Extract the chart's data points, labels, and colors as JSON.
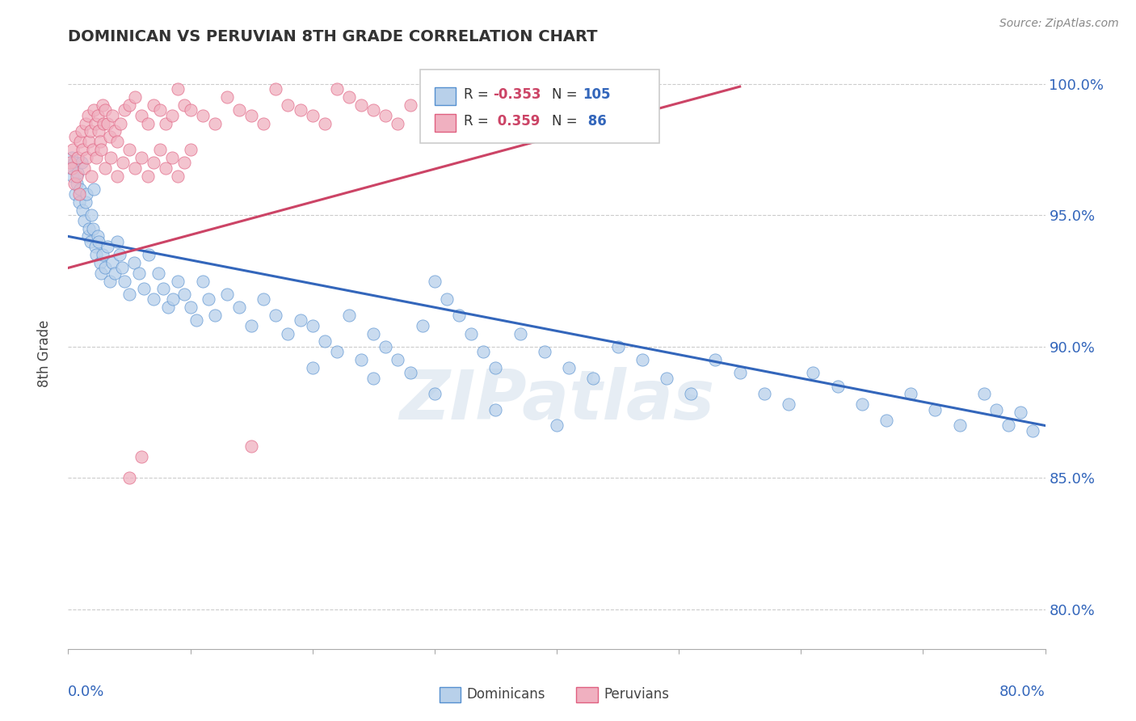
{
  "title": "DOMINICAN VS PERUVIAN 8TH GRADE CORRELATION CHART",
  "source_text": "Source: ZipAtlas.com",
  "ylabel": "8th Grade",
  "ytick_labels": [
    "80.0%",
    "85.0%",
    "90.0%",
    "95.0%",
    "100.0%"
  ],
  "ytick_values": [
    0.8,
    0.85,
    0.9,
    0.95,
    1.0
  ],
  "xlim": [
    0.0,
    0.8
  ],
  "ylim": [
    0.785,
    1.01
  ],
  "R_blue": -0.353,
  "N_blue": 105,
  "R_pink": 0.359,
  "N_pink": 86,
  "blue_color": "#b8d0ea",
  "pink_color": "#f0b0c0",
  "blue_edge_color": "#5590d0",
  "pink_edge_color": "#e06080",
  "blue_line_color": "#3366bb",
  "pink_line_color": "#cc4466",
  "legend_label_blue": "Dominicans",
  "legend_label_pink": "Peruvians",
  "watermark": "ZIPatlas",
  "blue_trend_x": [
    0.0,
    0.8
  ],
  "blue_trend_y": [
    0.942,
    0.87
  ],
  "pink_trend_x": [
    0.0,
    0.55
  ],
  "pink_trend_y": [
    0.93,
    0.999
  ],
  "blue_scatter_x": [
    0.002,
    0.003,
    0.004,
    0.005,
    0.006,
    0.007,
    0.008,
    0.009,
    0.01,
    0.011,
    0.012,
    0.013,
    0.014,
    0.015,
    0.016,
    0.017,
    0.018,
    0.019,
    0.02,
    0.021,
    0.022,
    0.023,
    0.024,
    0.025,
    0.026,
    0.027,
    0.028,
    0.03,
    0.032,
    0.034,
    0.036,
    0.038,
    0.04,
    0.042,
    0.044,
    0.046,
    0.05,
    0.054,
    0.058,
    0.062,
    0.066,
    0.07,
    0.074,
    0.078,
    0.082,
    0.086,
    0.09,
    0.095,
    0.1,
    0.105,
    0.11,
    0.115,
    0.12,
    0.13,
    0.14,
    0.15,
    0.16,
    0.17,
    0.18,
    0.19,
    0.2,
    0.21,
    0.22,
    0.23,
    0.24,
    0.25,
    0.26,
    0.27,
    0.28,
    0.29,
    0.3,
    0.31,
    0.32,
    0.33,
    0.34,
    0.35,
    0.37,
    0.39,
    0.41,
    0.43,
    0.45,
    0.47,
    0.49,
    0.51,
    0.53,
    0.55,
    0.57,
    0.59,
    0.61,
    0.63,
    0.65,
    0.67,
    0.69,
    0.71,
    0.73,
    0.75,
    0.76,
    0.77,
    0.78,
    0.79,
    0.2,
    0.25,
    0.3,
    0.35,
    0.4
  ],
  "blue_scatter_y": [
    0.968,
    0.972,
    0.965,
    0.97,
    0.958,
    0.962,
    0.966,
    0.955,
    0.96,
    0.97,
    0.952,
    0.948,
    0.955,
    0.958,
    0.942,
    0.945,
    0.94,
    0.95,
    0.945,
    0.96,
    0.938,
    0.935,
    0.942,
    0.94,
    0.932,
    0.928,
    0.935,
    0.93,
    0.938,
    0.925,
    0.932,
    0.928,
    0.94,
    0.935,
    0.93,
    0.925,
    0.92,
    0.932,
    0.928,
    0.922,
    0.935,
    0.918,
    0.928,
    0.922,
    0.915,
    0.918,
    0.925,
    0.92,
    0.915,
    0.91,
    0.925,
    0.918,
    0.912,
    0.92,
    0.915,
    0.908,
    0.918,
    0.912,
    0.905,
    0.91,
    0.908,
    0.902,
    0.898,
    0.912,
    0.895,
    0.905,
    0.9,
    0.895,
    0.89,
    0.908,
    0.925,
    0.918,
    0.912,
    0.905,
    0.898,
    0.892,
    0.905,
    0.898,
    0.892,
    0.888,
    0.9,
    0.895,
    0.888,
    0.882,
    0.895,
    0.89,
    0.882,
    0.878,
    0.89,
    0.885,
    0.878,
    0.872,
    0.882,
    0.876,
    0.87,
    0.882,
    0.876,
    0.87,
    0.875,
    0.868,
    0.892,
    0.888,
    0.882,
    0.876,
    0.87
  ],
  "pink_scatter_x": [
    0.002,
    0.003,
    0.004,
    0.005,
    0.006,
    0.007,
    0.008,
    0.009,
    0.01,
    0.011,
    0.012,
    0.013,
    0.014,
    0.015,
    0.016,
    0.017,
    0.018,
    0.019,
    0.02,
    0.021,
    0.022,
    0.023,
    0.024,
    0.025,
    0.026,
    0.027,
    0.028,
    0.029,
    0.03,
    0.032,
    0.034,
    0.036,
    0.038,
    0.04,
    0.043,
    0.046,
    0.05,
    0.055,
    0.06,
    0.065,
    0.07,
    0.075,
    0.08,
    0.085,
    0.09,
    0.095,
    0.1,
    0.11,
    0.12,
    0.13,
    0.14,
    0.15,
    0.16,
    0.17,
    0.18,
    0.19,
    0.2,
    0.21,
    0.22,
    0.23,
    0.24,
    0.25,
    0.26,
    0.27,
    0.28,
    0.3,
    0.32,
    0.35,
    0.03,
    0.035,
    0.04,
    0.045,
    0.05,
    0.055,
    0.06,
    0.065,
    0.07,
    0.075,
    0.08,
    0.085,
    0.09,
    0.095,
    0.1,
    0.05,
    0.06,
    0.15
  ],
  "pink_scatter_y": [
    0.97,
    0.968,
    0.975,
    0.962,
    0.98,
    0.965,
    0.972,
    0.958,
    0.978,
    0.982,
    0.975,
    0.968,
    0.985,
    0.972,
    0.988,
    0.978,
    0.982,
    0.965,
    0.975,
    0.99,
    0.985,
    0.972,
    0.988,
    0.982,
    0.978,
    0.975,
    0.992,
    0.985,
    0.99,
    0.985,
    0.98,
    0.988,
    0.982,
    0.978,
    0.985,
    0.99,
    0.992,
    0.995,
    0.988,
    0.985,
    0.992,
    0.99,
    0.985,
    0.988,
    0.998,
    0.992,
    0.99,
    0.988,
    0.985,
    0.995,
    0.99,
    0.988,
    0.985,
    0.998,
    0.992,
    0.99,
    0.988,
    0.985,
    0.998,
    0.995,
    0.992,
    0.99,
    0.988,
    0.985,
    0.992,
    0.99,
    0.988,
    0.985,
    0.968,
    0.972,
    0.965,
    0.97,
    0.975,
    0.968,
    0.972,
    0.965,
    0.97,
    0.975,
    0.968,
    0.972,
    0.965,
    0.97,
    0.975,
    0.85,
    0.858,
    0.862
  ]
}
